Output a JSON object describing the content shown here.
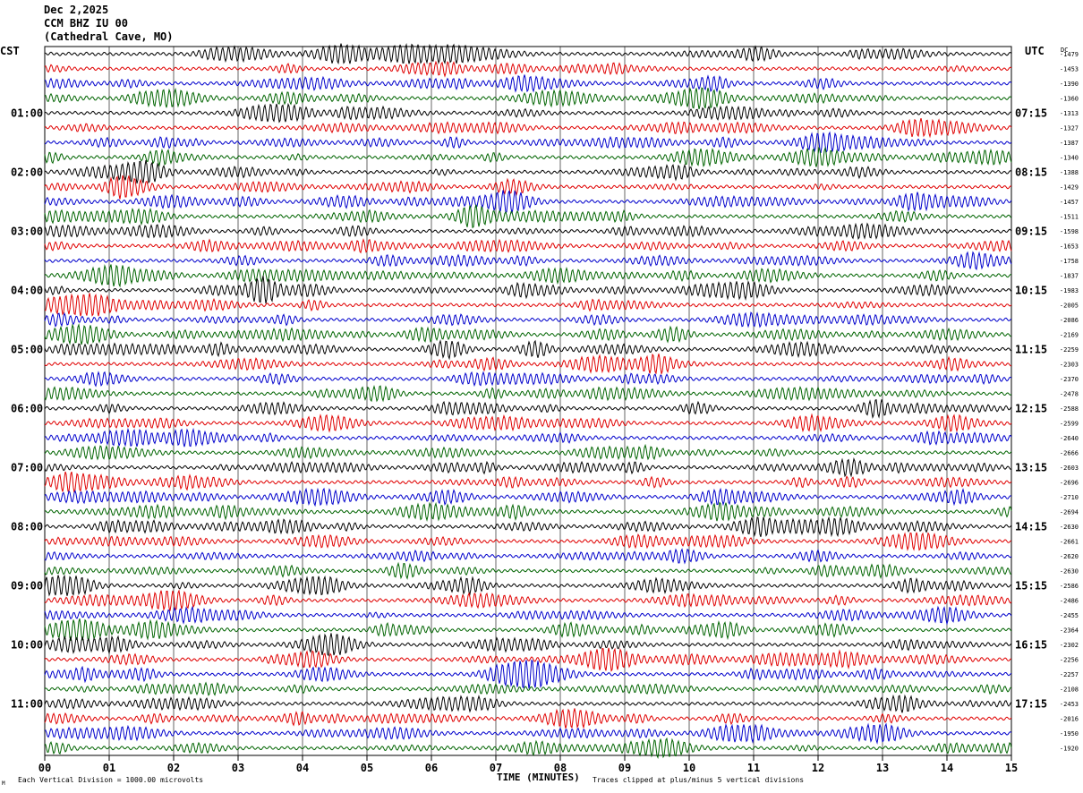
{
  "header": {
    "date": "Dec 2,2025",
    "station": "CCM BHZ IU 00",
    "location": "(Cathedral Cave, MO)"
  },
  "labels": {
    "left_tz": "CST",
    "right_tz": "UTC",
    "dc_header": "DC"
  },
  "footer": {
    "scale_note": "Each Vertical Division = 1000.00 microvolts",
    "clip_note": "Traces clipped at plus/minus 5 vertical divisions",
    "corner_mark": "M"
  },
  "colors": {
    "trace_cycle": [
      "#000000",
      "#e00000",
      "#0000cc",
      "#006400"
    ],
    "grid": "#000000",
    "background": "#ffffff"
  },
  "chart_data": {
    "type": "line",
    "title": "CCM BHZ IU 00",
    "xlabel": "TIME (MINUTES)",
    "x_ticks": [
      "00",
      "01",
      "02",
      "03",
      "04",
      "05",
      "06",
      "07",
      "08",
      "09",
      "10",
      "11",
      "12",
      "13",
      "14",
      "15"
    ],
    "xlim": [
      0,
      15
    ],
    "rows_count": 48,
    "rows_per_hour": 4,
    "left_hour_labels": [
      "01:00",
      "02:00",
      "03:00",
      "04:00",
      "05:00",
      "06:00",
      "07:00",
      "08:00",
      "09:00",
      "10:00",
      "11:00"
    ],
    "right_hour_labels": [
      "07:15",
      "08:15",
      "09:15",
      "10:15",
      "11:15",
      "12:15",
      "13:15",
      "14:15",
      "15:15",
      "16:15",
      "17:15"
    ],
    "hour_label_rows": [
      4,
      8,
      12,
      16,
      20,
      24,
      28,
      32,
      36,
      40,
      44
    ],
    "dc_offsets": [
      -1479,
      -1453,
      -1390,
      -1360,
      -1313,
      -1327,
      -1387,
      -1340,
      -1388,
      -1429,
      -1457,
      -1511,
      -1598,
      -1653,
      -1758,
      -1837,
      -1983,
      -2005,
      -2086,
      -2169,
      -2259,
      -2303,
      -2370,
      -2478,
      -2588,
      -2599,
      -2640,
      -2666,
      -2603,
      -2696,
      -2710,
      -2694,
      -2630,
      -2661,
      -2620,
      -2630,
      -2586,
      -2486,
      -2455,
      -2364,
      -2302,
      -2256,
      -2257,
      -2108,
      -2453,
      -2016,
      -1950,
      -1920
    ],
    "traces": "continuous seismic helicorder traces, one per 15-minute row, colors cycling black/red/blue/green"
  }
}
